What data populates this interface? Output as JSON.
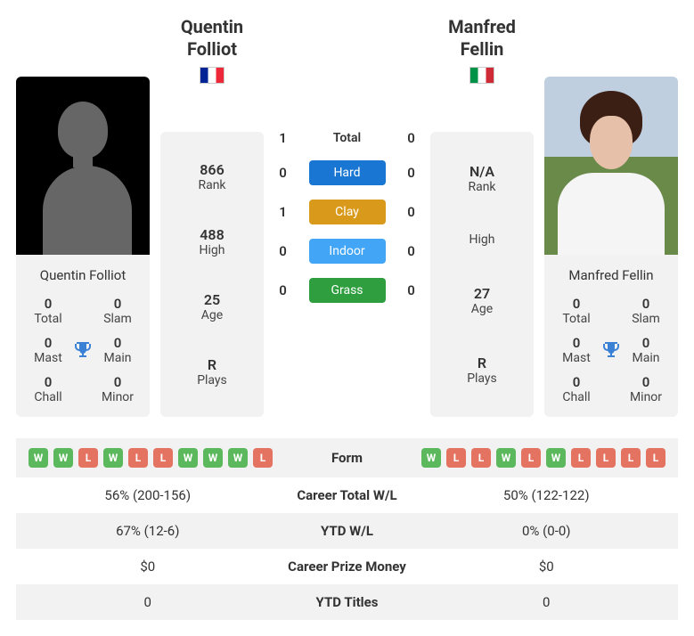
{
  "colors": {
    "panel_bg": "#f2f2f2",
    "trophy": "#3b82d6",
    "form_win": "#5cb85c",
    "form_loss": "#e57361",
    "surface_hard": "#1976d2",
    "surface_clay": "#d99a1c",
    "surface_indoor": "#42a5f5",
    "surface_grass": "#2e9e3f"
  },
  "players": {
    "p1": {
      "name": "Quentin Folliot",
      "first": "Quentin",
      "last": "Folliot",
      "flag": "fr",
      "has_photo": false,
      "rank": "866",
      "high": "488",
      "age": "25",
      "plays": "R",
      "titles": {
        "total": "0",
        "slam": "0",
        "mast": "0",
        "main": "0",
        "chall": "0",
        "minor": "0"
      }
    },
    "p2": {
      "name": "Manfred Fellin",
      "first": "Manfred",
      "last": "Fellin",
      "flag": "it",
      "has_photo": true,
      "rank": "N/A",
      "high": "",
      "age": "27",
      "plays": "R",
      "titles": {
        "total": "0",
        "slam": "0",
        "mast": "0",
        "main": "0",
        "chall": "0",
        "minor": "0"
      }
    }
  },
  "stat_labels": {
    "rank": "Rank",
    "high": "High",
    "age": "Age",
    "plays": "Plays",
    "total": "Total",
    "slam": "Slam",
    "mast": "Mast",
    "main": "Main",
    "chall": "Chall",
    "minor": "Minor"
  },
  "h2h": {
    "rows": [
      {
        "p1": "1",
        "label": "Total",
        "p2": "0",
        "kind": "total"
      },
      {
        "p1": "0",
        "label": "Hard",
        "p2": "0",
        "kind": "hard"
      },
      {
        "p1": "1",
        "label": "Clay",
        "p2": "0",
        "kind": "clay"
      },
      {
        "p1": "0",
        "label": "Indoor",
        "p2": "0",
        "kind": "indoor"
      },
      {
        "p1": "0",
        "label": "Grass",
        "p2": "0",
        "kind": "grass"
      }
    ]
  },
  "compare": {
    "labels": {
      "form": "Form",
      "career_wl": "Career Total W/L",
      "ytd_wl": "YTD W/L",
      "prize": "Career Prize Money",
      "ytd_titles": "YTD Titles"
    },
    "p1": {
      "form": [
        "W",
        "W",
        "L",
        "W",
        "L",
        "L",
        "W",
        "W",
        "W",
        "L"
      ],
      "career_wl": "56% (200-156)",
      "ytd_wl": "67% (12-6)",
      "prize": "$0",
      "ytd_titles": "0"
    },
    "p2": {
      "form": [
        "W",
        "L",
        "L",
        "W",
        "L",
        "W",
        "L",
        "L",
        "L",
        "L"
      ],
      "career_wl": "50% (122-122)",
      "ytd_wl": "0% (0-0)",
      "prize": "$0",
      "ytd_titles": "0"
    }
  }
}
